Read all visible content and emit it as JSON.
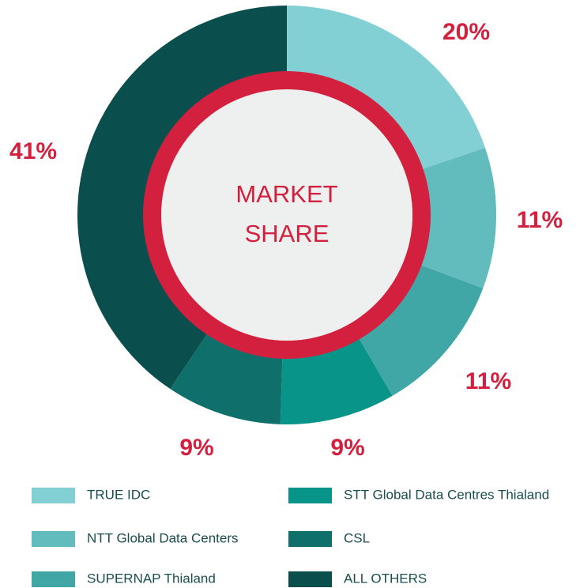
{
  "chart_data": {
    "type": "donut",
    "center_text": [
      "MARKET",
      "SHARE"
    ],
    "categories": [
      "TRUE IDC",
      "NTT Global Data Centers",
      "SUPERNAP Thialand",
      "STT Global Data Centres Thialand",
      "CSL",
      "ALL OTHERS"
    ],
    "values": [
      20,
      11,
      11,
      9,
      9,
      41
    ],
    "value_labels": [
      "20%",
      "11%",
      "11%",
      "9%",
      "9%",
      "41%"
    ],
    "colors": [
      "#83d0d4",
      "#62bcbd",
      "#41a7a6",
      "#089488",
      "#0f6f6b",
      "#0b4e4e"
    ]
  }
}
